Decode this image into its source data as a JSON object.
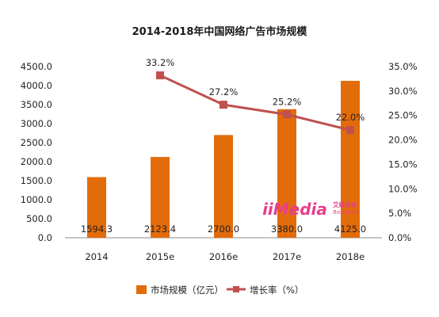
{
  "chart_data": {
    "type": "bar",
    "title": "2014-2018年中国网络广告市场规模",
    "categories": [
      "2014",
      "2015e",
      "2016e",
      "2017e",
      "2018e"
    ],
    "series": [
      {
        "name": "市场规模（亿元）",
        "kind": "bar",
        "axis": "left",
        "color": "#E36C0A",
        "values": [
          1594.3,
          2123.4,
          2700.0,
          3380.0,
          4125.0
        ],
        "labels": [
          "1594.3",
          "2123.4",
          "2700.0",
          "3380.0",
          "4125.0"
        ]
      },
      {
        "name": "增长率（%）",
        "kind": "line",
        "axis": "right",
        "color": "#C0504D",
        "values": [
          null,
          33.2,
          27.2,
          25.2,
          22.0
        ],
        "labels": [
          "",
          "33.2%",
          "27.2%",
          "25.2%",
          "22.0%"
        ]
      }
    ],
    "y_left": {
      "ylim": [
        0,
        4500
      ],
      "ticks": [
        "0.0",
        "500.0",
        "1000.0",
        "1500.0",
        "2000.0",
        "2500.0",
        "3000.0",
        "3500.0",
        "4000.0",
        "4500.0"
      ]
    },
    "y_right": {
      "ylim": [
        0,
        35
      ],
      "ticks": [
        "0.0%",
        "5.0%",
        "10.0%",
        "15.0%",
        "20.0%",
        "25.0%",
        "30.0%",
        "35.0%"
      ]
    },
    "grid": false,
    "legend": "bottom-center",
    "watermark": {
      "text": "iiMedia",
      "subtext_cn": "艾媒咨询",
      "subtext_en": "Research",
      "color": "#E83E8C"
    }
  }
}
